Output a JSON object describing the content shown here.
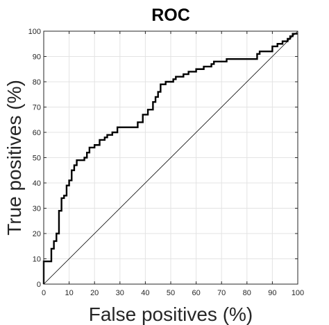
{
  "chart_data": {
    "type": "line",
    "title": "ROC",
    "xlabel": "False positives (%)",
    "ylabel": "True positives (%)",
    "xlim": [
      0,
      100
    ],
    "ylim": [
      0,
      100
    ],
    "xticks": [
      0,
      10,
      20,
      30,
      40,
      50,
      60,
      70,
      80,
      90,
      100
    ],
    "yticks": [
      0,
      10,
      20,
      30,
      40,
      50,
      60,
      70,
      80,
      90,
      100
    ],
    "grid": true,
    "reference_line": {
      "x": [
        0,
        100
      ],
      "y": [
        0,
        100
      ]
    },
    "series": [
      {
        "x": [
          0,
          0,
          3,
          3,
          4,
          4,
          5,
          5,
          6,
          6,
          7,
          7,
          8,
          8,
          9,
          9,
          10,
          10,
          11,
          11,
          12,
          12,
          13,
          13,
          16,
          16,
          17,
          17,
          18,
          18,
          20,
          20,
          22,
          22,
          24,
          24,
          25,
          25,
          27,
          27,
          29,
          29,
          37,
          37,
          39,
          39,
          41,
          41,
          43,
          43,
          44,
          44,
          45,
          45,
          46,
          46,
          48,
          48,
          51,
          51,
          52,
          52,
          55,
          55,
          57,
          57,
          60,
          60,
          63,
          63,
          66,
          66,
          67,
          67,
          72,
          72,
          75,
          75,
          84,
          84,
          85,
          85,
          90,
          90,
          92,
          92,
          94,
          94,
          96,
          96,
          97,
          97,
          98,
          98,
          100
        ],
        "y": [
          0,
          9,
          9,
          14,
          14,
          17,
          17,
          20,
          20,
          29,
          29,
          34,
          34,
          35,
          35,
          39,
          39,
          41,
          41,
          45,
          45,
          47,
          47,
          49,
          49,
          50,
          50,
          52,
          52,
          54,
          54,
          55,
          55,
          57,
          57,
          58,
          58,
          59,
          59,
          60,
          60,
          62,
          62,
          64,
          64,
          67,
          67,
          69,
          69,
          72,
          72,
          74,
          74,
          76,
          76,
          79,
          79,
          80,
          80,
          81,
          81,
          82,
          82,
          83,
          83,
          84,
          84,
          85,
          85,
          86,
          86,
          87,
          87,
          88,
          88,
          89,
          89,
          89,
          89,
          91,
          91,
          92,
          92,
          94,
          94,
          95,
          95,
          96,
          96,
          97,
          97,
          98,
          98,
          99,
          99
        ]
      }
    ]
  }
}
